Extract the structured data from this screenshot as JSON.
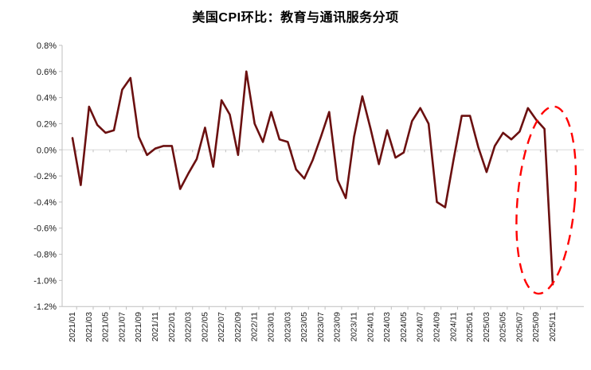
{
  "title": "美国CPI环比：教育与通讯服务分项",
  "chart_data": {
    "type": "line",
    "title": "美国CPI环比：教育与通讯服务分项",
    "xlabel": "",
    "ylabel": "",
    "ylim": [
      -1.2,
      0.8
    ],
    "grid": "horizontal zero-line only",
    "legend": "none",
    "categories": [
      "2021/01",
      "2021/02",
      "2021/03",
      "2021/04",
      "2021/05",
      "2021/06",
      "2021/07",
      "2021/08",
      "2021/09",
      "2021/10",
      "2021/11",
      "2021/12",
      "2022/01",
      "2022/02",
      "2022/03",
      "2022/04",
      "2022/05",
      "2022/06",
      "2022/07",
      "2022/08",
      "2022/09",
      "2022/10",
      "2022/11",
      "2022/12",
      "2023/01",
      "2023/02",
      "2023/03",
      "2023/04",
      "2023/05",
      "2023/06",
      "2023/07",
      "2023/08",
      "2023/09",
      "2023/10",
      "2023/11",
      "2023/12",
      "2024/01",
      "2024/02",
      "2024/03",
      "2024/04",
      "2024/05",
      "2024/06",
      "2024/07",
      "2024/08",
      "2024/09",
      "2024/10",
      "2024/11",
      "2024/12",
      "2025/01",
      "2025/02",
      "2025/03",
      "2025/04",
      "2025/05",
      "2025/06",
      "2025/07",
      "2025/08",
      "2025/09",
      "2025/10",
      "2025/11"
    ],
    "series": [
      {
        "name": "美国CPI环比：教育与通讯服务分项",
        "values": [
          0.09,
          -0.27,
          0.33,
          0.19,
          0.13,
          0.15,
          0.46,
          0.55,
          0.1,
          -0.04,
          0.01,
          0.03,
          0.03,
          -0.3,
          -0.18,
          -0.07,
          0.17,
          -0.13,
          0.38,
          0.27,
          -0.04,
          0.6,
          0.2,
          0.06,
          0.29,
          0.08,
          0.06,
          -0.15,
          -0.22,
          -0.08,
          0.1,
          0.29,
          -0.23,
          -0.37,
          0.1,
          0.41,
          0.16,
          -0.11,
          0.15,
          -0.06,
          -0.02,
          0.22,
          0.32,
          0.2,
          -0.4,
          -0.44,
          -0.08,
          0.26,
          0.26,
          0.02,
          -0.17,
          0.03,
          0.13,
          0.08,
          0.14,
          0.32,
          0.23,
          0.16,
          -1.03
        ]
      }
    ],
    "x_tick_labels": [
      "2021/01",
      "2021/03",
      "2021/05",
      "2021/07",
      "2021/09",
      "2021/11",
      "2022/01",
      "2022/03",
      "2022/05",
      "2022/07",
      "2022/09",
      "2022/11",
      "2023/01",
      "2023/03",
      "2023/05",
      "2023/07",
      "2023/09",
      "2023/11",
      "2024/01",
      "2024/03",
      "2024/05",
      "2024/07",
      "2024/09",
      "2024/11",
      "2025/01",
      "2025/03",
      "2025/05",
      "2025/07",
      "2025/09",
      "2025/11"
    ],
    "y_ticks": [
      {
        "label": "0.8%",
        "value": 0.8
      },
      {
        "label": "0.6%",
        "value": 0.6
      },
      {
        "label": "0.4%",
        "value": 0.4
      },
      {
        "label": "0.2%",
        "value": 0.2
      },
      {
        "label": "0.0%",
        "value": 0.0
      },
      {
        "label": "-0.2%",
        "value": -0.2
      },
      {
        "label": "-0.4%",
        "value": -0.4
      },
      {
        "label": "-0.6%",
        "value": -0.6
      },
      {
        "label": "-0.8%",
        "value": -0.8
      },
      {
        "label": "-1.0%",
        "value": -1.0
      },
      {
        "label": "-1.2%",
        "value": -1.2
      }
    ],
    "annotations": [
      {
        "shape": "dashed-ellipse",
        "purpose": "highlights the sharp plunge at the end of the series (to -1.03% at 2025/11)",
        "x_range": [
          "2025/08",
          "2025/11"
        ]
      }
    ],
    "colors": {
      "line": "#6B1010",
      "highlight_ellipse": "#FF0000",
      "zero_gridline": "#D9D9D9",
      "axis": "#BFBFBF",
      "tick_text": "#1A1A1A",
      "background": "#FFFFFF"
    }
  }
}
